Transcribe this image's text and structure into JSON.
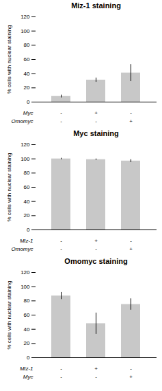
{
  "chart_data": [
    {
      "type": "bar",
      "title": "Miz-1 staining",
      "categories": [
        null,
        null,
        null
      ],
      "values": [
        8,
        31,
        41
      ],
      "errors": [
        2,
        3,
        12
      ],
      "color": "#c8c8c8",
      "ylabel": "% cells with nuclear staining",
      "ylim": [
        0,
        120
      ],
      "yticks": [
        0,
        20,
        40,
        60,
        80,
        100,
        120
      ],
      "xlabel_rows": [
        {
          "name": "Myc",
          "labels": [
            "-",
            "+",
            "-"
          ]
        },
        {
          "name": "Omomyc",
          "labels": [
            "-",
            "-",
            "+"
          ]
        }
      ]
    },
    {
      "type": "bar",
      "title": "Myc staining",
      "categories": [
        null,
        null,
        null
      ],
      "values": [
        100,
        99,
        97
      ],
      "errors": [
        1,
        1,
        2
      ],
      "color": "#c8c8c8",
      "ylabel": "% cells with nuclear staining",
      "ylim": [
        0,
        120
      ],
      "yticks": [
        0,
        20,
        40,
        60,
        80,
        100,
        120
      ],
      "xlabel_rows": [
        {
          "name": "Miz-1",
          "labels": [
            "-",
            "+",
            "-"
          ]
        },
        {
          "name": "Omomyc",
          "labels": [
            "-",
            "-",
            "+"
          ]
        }
      ]
    },
    {
      "type": "bar",
      "title": "Omomyc staining",
      "categories": [
        null,
        null,
        null
      ],
      "values": [
        87,
        48,
        75
      ],
      "errors": [
        5,
        15,
        8
      ],
      "color": "#c8c8c8",
      "ylabel": "% cells with nuclear staining",
      "ylim": [
        0,
        120
      ],
      "yticks": [
        0,
        20,
        40,
        60,
        80,
        100,
        120
      ],
      "xlabel_rows": [
        {
          "name": "Miz-1",
          "labels": [
            "-",
            "+",
            "-"
          ]
        },
        {
          "name": "Myc",
          "labels": [
            "-",
            "-",
            "+"
          ]
        }
      ]
    }
  ]
}
